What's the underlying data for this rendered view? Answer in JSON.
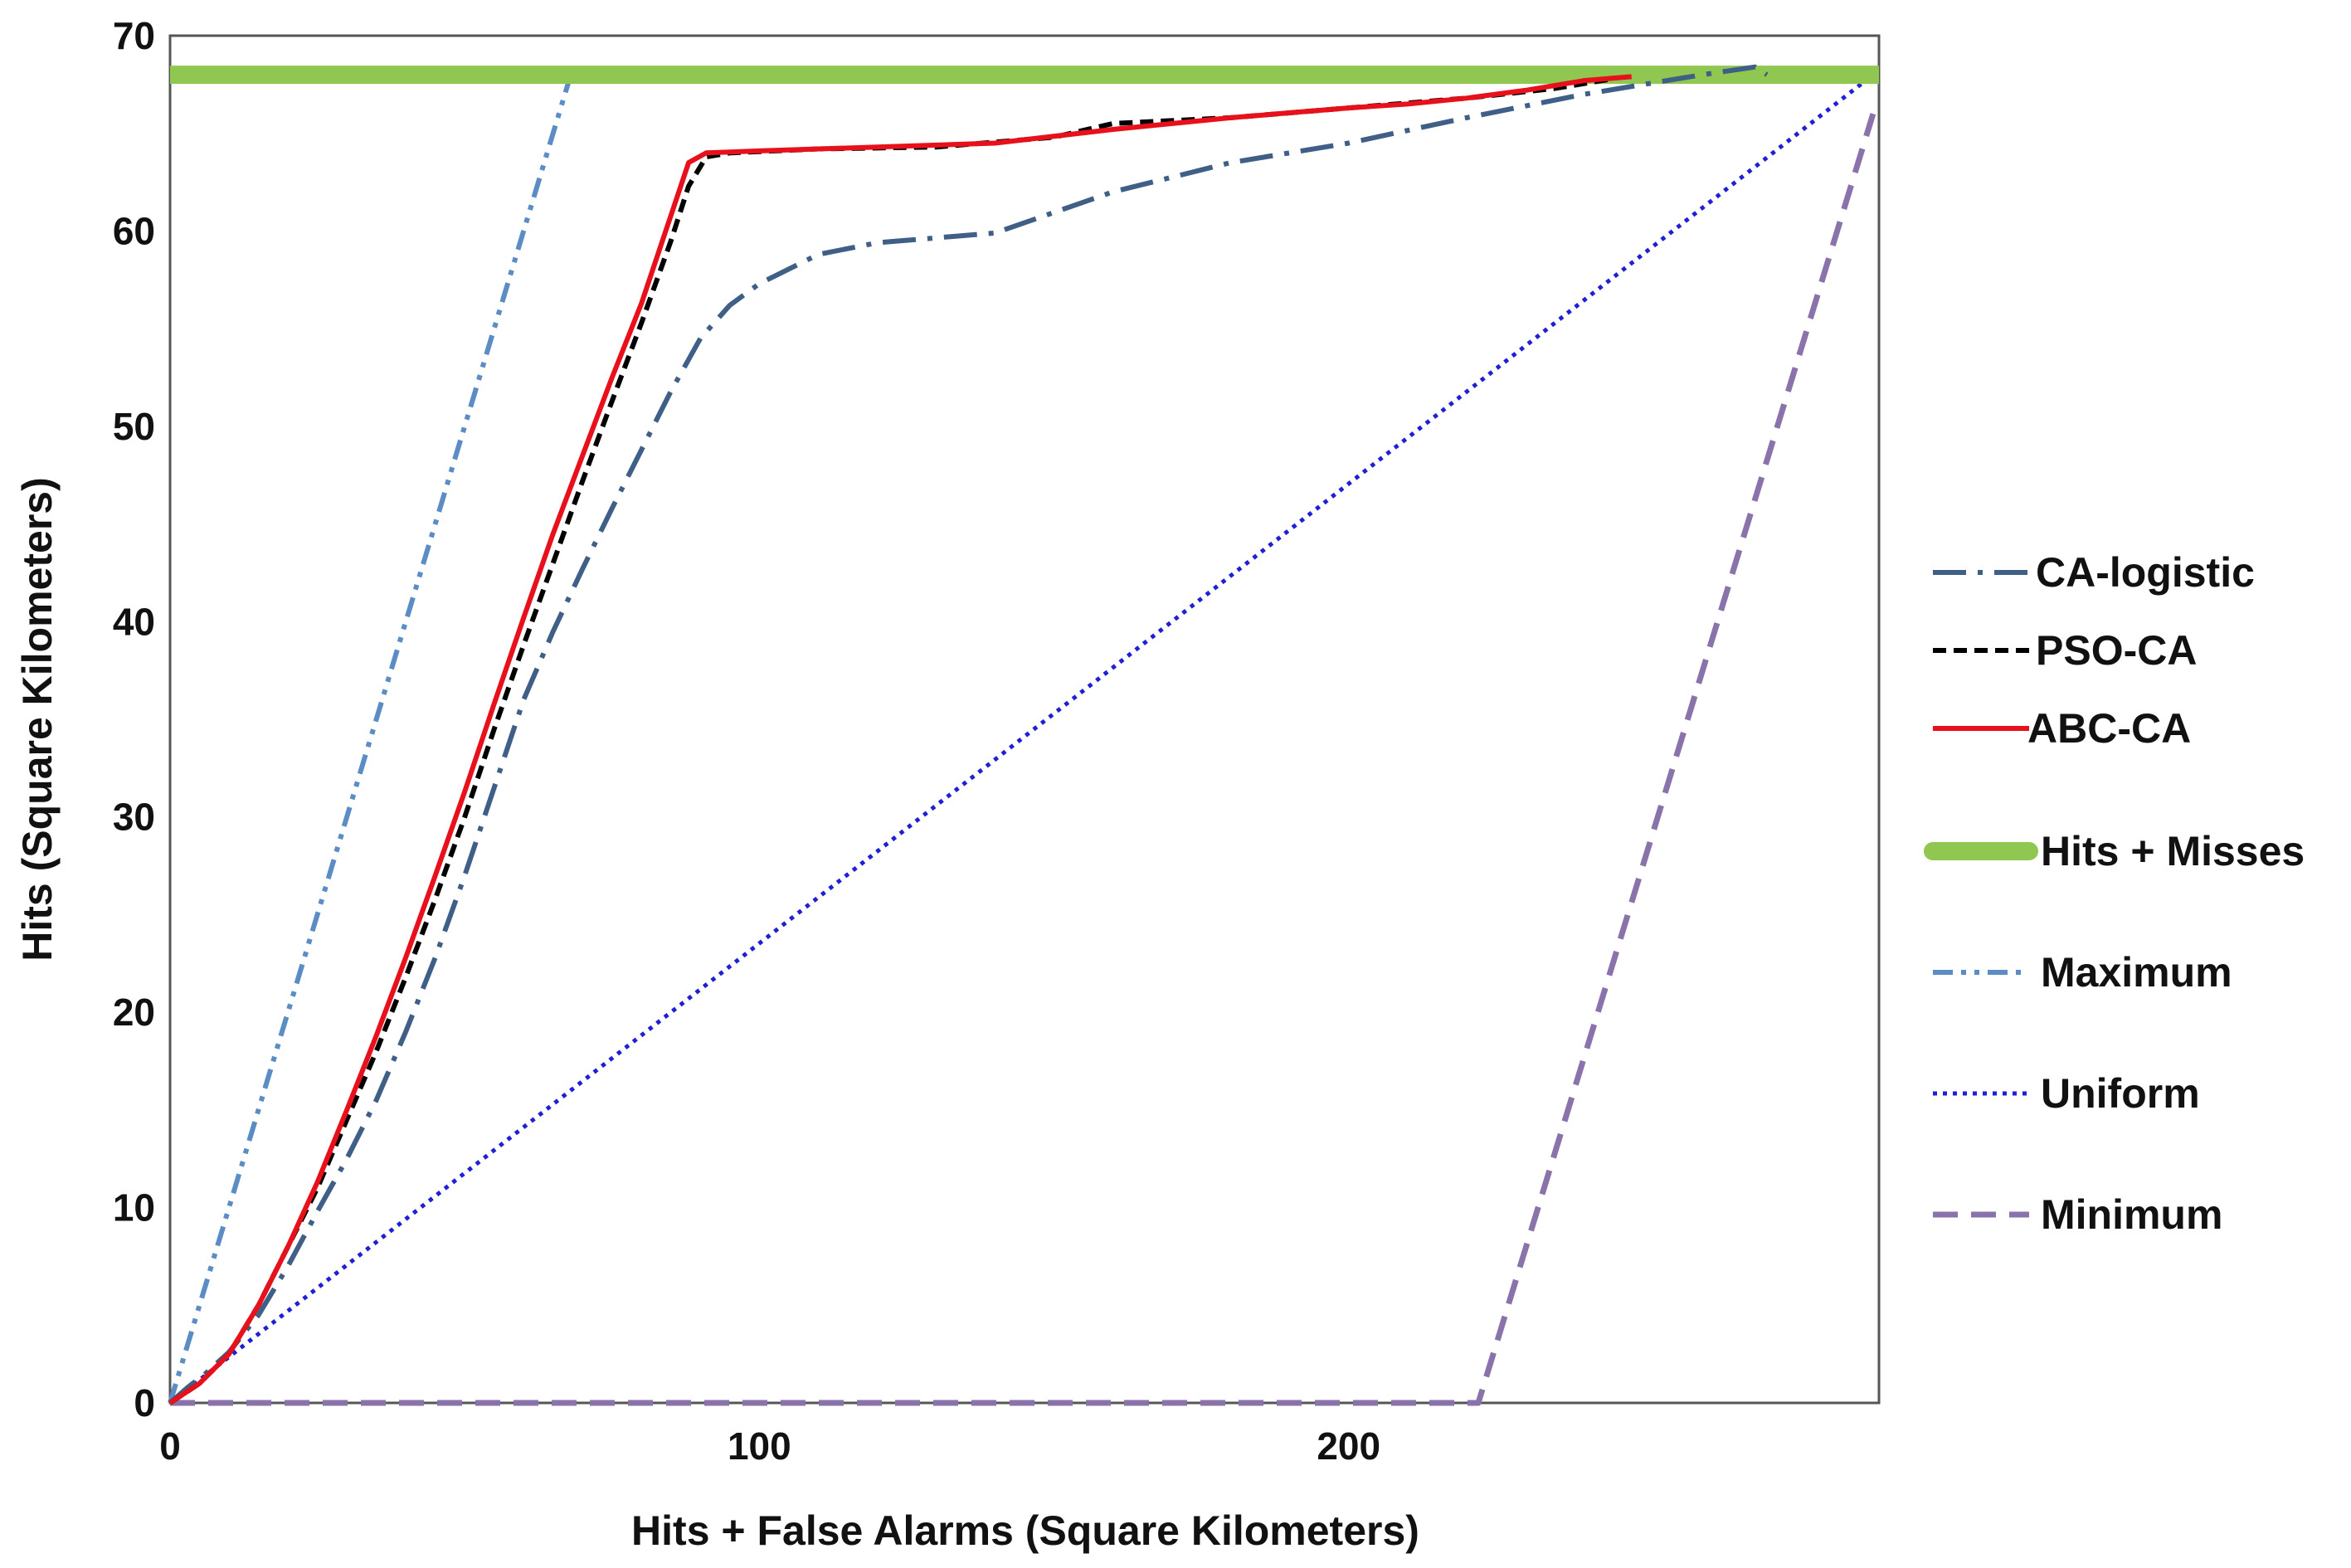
{
  "chart_data": {
    "type": "line",
    "xlabel": "Hits + False Alarms (Square Kilometers)",
    "ylabel": "Hits (Square Kilometers)",
    "xlim": [
      0,
      290
    ],
    "ylim": [
      0,
      70
    ],
    "x_ticks": [
      "0",
      "100",
      "200"
    ],
    "y_ticks": [
      "0",
      "10",
      "20",
      "30",
      "40",
      "50",
      "60",
      "70"
    ],
    "grid": false,
    "legend_position": "right",
    "series": [
      {
        "name": "CA-logistic",
        "color": "#3f5f86",
        "dash": "long-dash-dot",
        "points": [
          [
            0,
            0
          ],
          [
            3,
            0.8
          ],
          [
            6,
            1.5
          ],
          [
            10,
            2.6
          ],
          [
            15,
            4.5
          ],
          [
            20,
            7
          ],
          [
            25,
            9.8
          ],
          [
            30,
            12.5
          ],
          [
            35,
            15.5
          ],
          [
            40,
            19
          ],
          [
            45,
            22.8
          ],
          [
            50,
            27
          ],
          [
            55,
            31.5
          ],
          [
            60,
            36
          ],
          [
            65,
            39.5
          ],
          [
            70,
            42.7
          ],
          [
            75,
            45.8
          ],
          [
            80,
            48.8
          ],
          [
            85,
            51.8
          ],
          [
            90,
            54.5
          ],
          [
            95,
            56.2
          ],
          [
            100,
            57.3
          ],
          [
            110,
            58.8
          ],
          [
            120,
            59.4
          ],
          [
            140,
            59.9
          ],
          [
            160,
            62
          ],
          [
            180,
            63.5
          ],
          [
            200,
            64.5
          ],
          [
            220,
            65.8
          ],
          [
            240,
            67
          ],
          [
            260,
            68
          ],
          [
            269,
            68.4
          ],
          [
            271,
            68
          ]
        ]
      },
      {
        "name": "PSO-CA",
        "color": "#000000",
        "dash": "short-dash",
        "points": [
          [
            0,
            0
          ],
          [
            5,
            1
          ],
          [
            10,
            2.5
          ],
          [
            15,
            5
          ],
          [
            20,
            8
          ],
          [
            25,
            11
          ],
          [
            30,
            14.5
          ],
          [
            35,
            18
          ],
          [
            40,
            21.8
          ],
          [
            45,
            25.8
          ],
          [
            50,
            30
          ],
          [
            55,
            34.5
          ],
          [
            60,
            38.8
          ],
          [
            65,
            43
          ],
          [
            70,
            47.2
          ],
          [
            75,
            51.3
          ],
          [
            80,
            55.3
          ],
          [
            85,
            59.5
          ],
          [
            88,
            62.3
          ],
          [
            91,
            63.8
          ],
          [
            95,
            64
          ],
          [
            110,
            64.2
          ],
          [
            130,
            64.3
          ],
          [
            150,
            64.8
          ],
          [
            160,
            65.5
          ],
          [
            180,
            65.8
          ],
          [
            200,
            66.3
          ],
          [
            220,
            66.8
          ],
          [
            235,
            67.3
          ],
          [
            245,
            67.8
          ]
        ]
      },
      {
        "name": "ABC-CA",
        "color": "#e8101a",
        "dash": "solid",
        "points": [
          [
            0,
            0
          ],
          [
            5,
            1
          ],
          [
            10,
            2.5
          ],
          [
            15,
            5
          ],
          [
            20,
            8
          ],
          [
            25,
            11.3
          ],
          [
            30,
            15
          ],
          [
            35,
            18.8
          ],
          [
            40,
            22.8
          ],
          [
            45,
            27
          ],
          [
            50,
            31.3
          ],
          [
            55,
            35.8
          ],
          [
            60,
            40.2
          ],
          [
            65,
            44.5
          ],
          [
            70,
            48.5
          ],
          [
            75,
            52.5
          ],
          [
            80,
            56.3
          ],
          [
            85,
            60.8
          ],
          [
            88,
            63.5
          ],
          [
            91,
            64
          ],
          [
            100,
            64.1
          ],
          [
            120,
            64.3
          ],
          [
            140,
            64.5
          ],
          [
            160,
            65.2
          ],
          [
            180,
            65.8
          ],
          [
            200,
            66.3
          ],
          [
            210,
            66.5
          ],
          [
            220,
            66.8
          ],
          [
            230,
            67.2
          ],
          [
            240,
            67.7
          ],
          [
            248,
            67.9
          ]
        ]
      },
      {
        "name": "Hits + Misses",
        "color": "#8fc751",
        "dash": "thick-solid",
        "points": [
          [
            0,
            68
          ],
          [
            290,
            68
          ]
        ]
      },
      {
        "name": "Maximum",
        "color": "#5b8dc4",
        "dash": "dash-dot-dot",
        "points": [
          [
            0,
            0
          ],
          [
            68,
            68
          ],
          [
            290,
            68
          ]
        ]
      },
      {
        "name": "Uniform",
        "color": "#1f1fd6",
        "dash": "dotted",
        "points": [
          [
            0,
            0
          ],
          [
            289,
            68
          ]
        ]
      },
      {
        "name": "Minimum",
        "color": "#8a72aa",
        "dash": "medium-dash",
        "points": [
          [
            0,
            0
          ],
          [
            222,
            0
          ],
          [
            289,
            66
          ]
        ]
      }
    ]
  }
}
